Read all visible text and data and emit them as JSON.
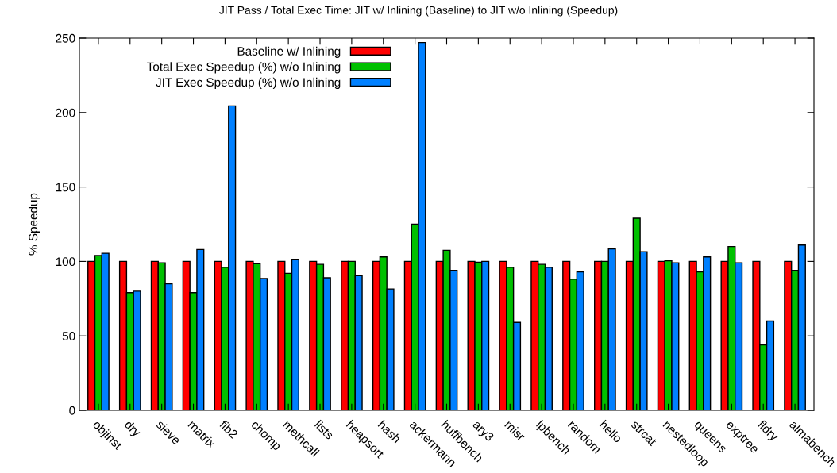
{
  "chart_data": {
    "type": "bar",
    "title": "JIT Pass / Total Exec Time: JIT w/ Inlining (Baseline) to JIT w/o Inlining (Speedup)",
    "ylabel": "% Speedup",
    "categories": [
      "objinst",
      "dry",
      "sieve",
      "matrix",
      "fib2",
      "chomp",
      "methcall",
      "lists",
      "heapsort",
      "hash",
      "ackermann",
      "huffbench",
      "ary3",
      "misr",
      "lpbench",
      "random",
      "hello",
      "strcat",
      "nestedloop",
      "queens",
      "exptree",
      "fldry",
      "almabench"
    ],
    "series": [
      {
        "name": "Baseline w/ Inlining",
        "color": "#ff0000",
        "values": [
          100,
          100,
          100,
          100,
          100,
          100,
          100,
          100,
          100,
          100,
          100,
          100,
          100,
          100,
          100,
          100,
          100,
          100,
          100,
          100,
          100,
          100,
          100
        ]
      },
      {
        "name": "Total Exec Speedup (%) w/o Inlining",
        "color": "#00c000",
        "values": [
          104,
          79,
          99,
          79,
          96,
          98.5,
          92,
          98,
          100,
          103,
          125,
          107.5,
          99.5,
          96,
          98,
          88,
          100,
          129,
          100.5,
          93,
          110,
          44,
          94
        ]
      },
      {
        "name": "JIT Exec Speedup (%) w/o Inlining",
        "color": "#0080ff",
        "values": [
          105.5,
          80,
          85,
          108,
          204.5,
          88.5,
          101.5,
          89,
          90.5,
          81.5,
          247,
          94,
          100,
          59,
          96,
          93,
          108.5,
          106.5,
          99,
          103,
          99,
          60,
          111
        ]
      }
    ],
    "ylim": [
      0,
      250
    ],
    "yticks": [
      0,
      50,
      100,
      150,
      200,
      250
    ],
    "grid": false,
    "legend": "top left"
  }
}
